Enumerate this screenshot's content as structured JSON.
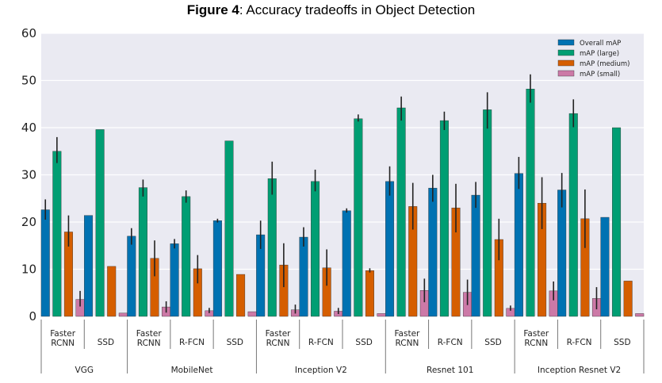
{
  "title": {
    "bold": "Figure 4",
    "rest": ": Accuracy tradeoffs in Object Detection"
  },
  "colors": {
    "background": "#eaeaf2",
    "grid": "#ffffff",
    "series": [
      "#0072b2",
      "#009e73",
      "#d55e00",
      "#cc79a7"
    ],
    "error": "#222222"
  },
  "chart_data": {
    "type": "bar",
    "title": "Figure 4: Accuracy tradeoffs in Object Detection",
    "xlabel": "",
    "ylabel": "",
    "ylim": [
      0,
      60
    ],
    "yticks": [
      0,
      10,
      20,
      30,
      40,
      50,
      60
    ],
    "grid": true,
    "legend_position": "top-right",
    "series": [
      {
        "name": "Overall mAP"
      },
      {
        "name": "mAP (large)"
      },
      {
        "name": "mAP (medium)"
      },
      {
        "name": "mAP (small)"
      }
    ],
    "groups": [
      {
        "name": "VGG",
        "categories": [
          {
            "label": [
              "Faster",
              "RCNN"
            ],
            "values": [
              22.6,
              35.0,
              17.9,
              3.6
            ],
            "errors": [
              [
                20.5,
                24.8
              ],
              [
                32.5,
                38.0
              ],
              [
                14.8,
                21.4
              ],
              [
                2.1,
                5.4
              ]
            ]
          },
          {
            "label": [
              "SSD"
            ],
            "values": [
              21.4,
              39.6,
              10.6,
              0.7
            ],
            "errors": null
          }
        ]
      },
      {
        "name": "MobileNet",
        "categories": [
          {
            "label": [
              "Faster",
              "RCNN"
            ],
            "values": [
              17.0,
              27.3,
              12.3,
              2.0
            ],
            "errors": [
              [
                15.2,
                18.7
              ],
              [
                25.4,
                29.0
              ],
              [
                8.5,
                16.1
              ],
              [
                0.8,
                3.2
              ]
            ]
          },
          {
            "label": [
              "R-FCN"
            ],
            "values": [
              15.4,
              25.4,
              10.1,
              1.2
            ],
            "errors": [
              [
                14.4,
                16.4
              ],
              [
                24.1,
                26.7
              ],
              [
                7.0,
                13.0
              ],
              [
                0.7,
                1.8
              ]
            ]
          },
          {
            "label": [
              "SSD"
            ],
            "values": [
              20.3,
              37.2,
              8.9,
              1.0
            ],
            "errors": [
              [
                19.9,
                20.7
              ],
              null,
              null,
              null
            ]
          }
        ]
      },
      {
        "name": "Inception V2",
        "categories": [
          {
            "label": [
              "Faster",
              "RCNN"
            ],
            "values": [
              17.3,
              29.2,
              10.9,
              1.4
            ],
            "errors": [
              [
                14.3,
                20.3
              ],
              [
                25.8,
                32.8
              ],
              [
                6.2,
                15.5
              ],
              [
                0.6,
                2.5
              ]
            ]
          },
          {
            "label": [
              "R-FCN"
            ],
            "values": [
              16.8,
              28.6,
              10.3,
              1.1
            ],
            "errors": [
              [
                14.8,
                18.9
              ],
              [
                26.5,
                31.1
              ],
              [
                6.5,
                14.2
              ],
              [
                0.5,
                1.8
              ]
            ]
          },
          {
            "label": [
              "SSD"
            ],
            "values": [
              22.4,
              41.9,
              9.7,
              0.6
            ],
            "errors": [
              [
                22.0,
                22.9
              ],
              [
                41.3,
                42.8
              ],
              [
                9.3,
                10.2
              ],
              null
            ]
          }
        ]
      },
      {
        "name": "Resnet 101",
        "categories": [
          {
            "label": [
              "Faster",
              "RCNN"
            ],
            "values": [
              28.6,
              44.2,
              23.3,
              5.5
            ],
            "errors": [
              [
                25.6,
                31.8
              ],
              [
                41.5,
                46.6
              ],
              [
                18.4,
                28.3
              ],
              [
                3.0,
                8.0
              ]
            ]
          },
          {
            "label": [
              "R-FCN"
            ],
            "values": [
              27.2,
              41.5,
              23.0,
              5.1
            ],
            "errors": [
              [
                24.3,
                30.0
              ],
              [
                39.5,
                43.4
              ],
              [
                17.8,
                28.1
              ],
              [
                2.4,
                7.8
              ]
            ]
          },
          {
            "label": [
              "SSD"
            ],
            "values": [
              25.7,
              43.8,
              16.3,
              1.7
            ],
            "errors": [
              [
                23.0,
                28.5
              ],
              [
                39.8,
                47.5
              ],
              [
                11.9,
                20.7
              ],
              [
                1.2,
                2.3
              ]
            ]
          }
        ]
      },
      {
        "name": "Inception Resnet V2",
        "categories": [
          {
            "label": [
              "Faster",
              "RCNN"
            ],
            "values": [
              30.3,
              48.2,
              24.0,
              5.4
            ],
            "errors": [
              [
                27.0,
                33.8
              ],
              [
                45.3,
                51.3
              ],
              [
                18.5,
                29.5
              ],
              [
                3.4,
                7.4
              ]
            ]
          },
          {
            "label": [
              "R-FCN"
            ],
            "values": [
              26.8,
              43.0,
              20.7,
              3.8
            ],
            "errors": [
              [
                23.1,
                30.4
              ],
              [
                40.1,
                46.0
              ],
              [
                14.5,
                26.9
              ],
              [
                1.5,
                6.2
              ]
            ]
          },
          {
            "label": [
              "SSD"
            ],
            "values": [
              21.0,
              40.0,
              7.5,
              0.6
            ],
            "errors": null
          }
        ]
      }
    ]
  }
}
